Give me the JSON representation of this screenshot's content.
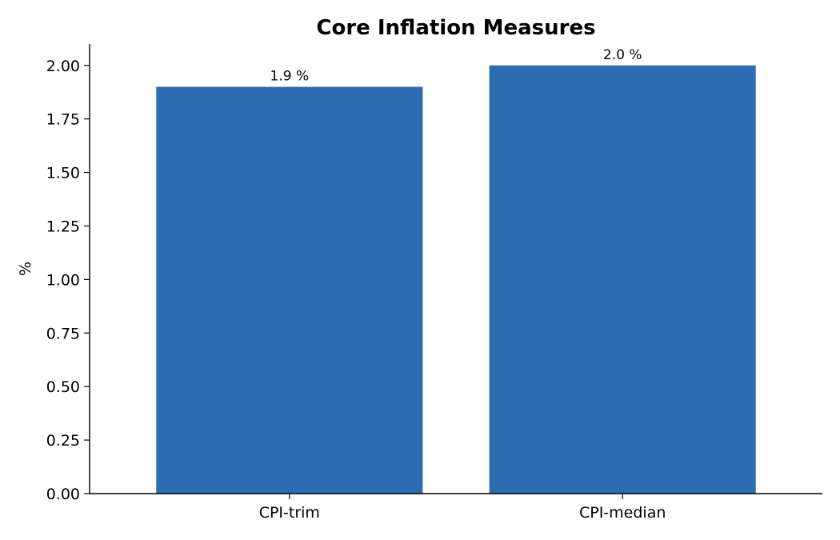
{
  "chart_data": {
    "type": "bar",
    "title": "Core Inflation Measures",
    "xlabel": "",
    "ylabel": "%",
    "categories": [
      "CPI-trim",
      "CPI-median"
    ],
    "values": [
      1.9,
      2.0
    ],
    "value_labels": [
      "1.9 %",
      "2.0 %"
    ],
    "ylim": [
      0,
      2.1
    ],
    "yticks": [
      0.0,
      0.25,
      0.5,
      0.75,
      1.0,
      1.25,
      1.5,
      1.75,
      2.0
    ],
    "ytick_labels": [
      "0.00",
      "0.25",
      "0.50",
      "0.75",
      "1.00",
      "1.25",
      "1.50",
      "1.75",
      "2.00"
    ],
    "grid": false,
    "bar_color": "#2c6cb0"
  }
}
